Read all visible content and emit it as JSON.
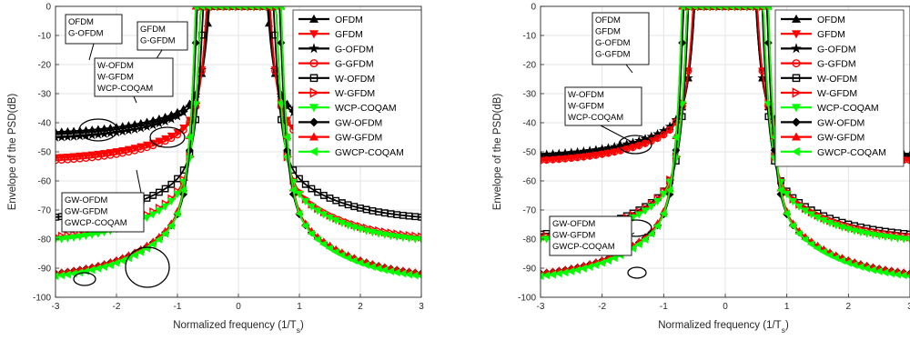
{
  "chart_data": [
    {
      "type": "line",
      "title": "",
      "xlabel": "Normalized frequency (1/T",
      "xlabel_sub": "s",
      "xlabel_tail": ")",
      "ylabel": "Envelope of the PSD(dB)",
      "xlim": [
        -3,
        3
      ],
      "ylim": [
        -100,
        0
      ],
      "xticks": [
        -3,
        -2,
        -1,
        0,
        1,
        2,
        3
      ],
      "yticks": [
        0,
        -10,
        -20,
        -30,
        -40,
        -50,
        -60,
        -70,
        -80,
        -90,
        -100
      ],
      "grid": true,
      "legend_position": "top-right",
      "series": [
        {
          "name": "OFDM",
          "color": "#000000",
          "marker": "triangle-up",
          "floor": -44,
          "edge": 0.48,
          "plateau": 0.58,
          "steep": 1.4
        },
        {
          "name": "GFDM",
          "color": "#ff0000",
          "marker": "triangle-down",
          "floor": -53,
          "edge": 0.52,
          "plateau": 0.58,
          "steep": 1.4
        },
        {
          "name": "G-OFDM",
          "color": "#000000",
          "marker": "star",
          "floor": -46,
          "edge": 0.5,
          "plateau": 0.58,
          "steep": 1.4
        },
        {
          "name": "G-GFDM",
          "color": "#ff0000",
          "marker": "circle",
          "floor": -54,
          "edge": 0.52,
          "plateau": 0.58,
          "steep": 1.4
        },
        {
          "name": "W-OFDM",
          "color": "#000000",
          "marker": "square",
          "floor": -74,
          "edge": 0.58,
          "plateau": 0.65,
          "steep": 1.6
        },
        {
          "name": "W-GFDM",
          "color": "#ff0000",
          "marker": "triangle-right",
          "floor": -81,
          "edge": 0.62,
          "plateau": 0.65,
          "steep": 1.6
        },
        {
          "name": "WCP-COQAM",
          "color": "#00ff00",
          "marker": "triangle-down",
          "floor": -82,
          "edge": 0.62,
          "plateau": 0.65,
          "steep": 1.6
        },
        {
          "name": "GW-OFDM",
          "color": "#000000",
          "marker": "diamond",
          "floor": -94,
          "edge": 0.68,
          "plateau": 0.75,
          "steep": 1.8
        },
        {
          "name": "GW-GFDM",
          "color": "#ff0000",
          "marker": "triangle-up",
          "floor": -94,
          "edge": 0.7,
          "plateau": 0.75,
          "steep": 1.8
        },
        {
          "name": "GWCP-COQAM",
          "color": "#00ff00",
          "marker": "triangle-left",
          "floor": -95,
          "edge": 0.7,
          "plateau": 0.75,
          "steep": 1.8
        }
      ],
      "annotations": [
        {
          "lines": [
            "OFDM",
            "G-OFDM"
          ]
        },
        {
          "lines": [
            "GFDM",
            "G-GFDM"
          ]
        },
        {
          "lines": [
            "W-OFDM",
            "W-GFDM",
            "WCP-COQAM"
          ]
        },
        {
          "lines": [
            "GW-OFDM",
            "GW-GFDM",
            "GWCP-COQAM"
          ]
        }
      ]
    },
    {
      "type": "line",
      "title": "",
      "xlabel": "Normalized frequency (1/T",
      "xlabel_sub": "s",
      "xlabel_tail": ")",
      "ylabel": "Envelope of the PSD(dB)",
      "xlim": [
        -3,
        3
      ],
      "ylim": [
        -100,
        0
      ],
      "xticks": [
        -3,
        -2,
        -1,
        0,
        1,
        2,
        3
      ],
      "yticks": [
        0,
        -10,
        -20,
        -30,
        -40,
        -50,
        -60,
        -70,
        -80,
        -90,
        -100
      ],
      "grid": true,
      "legend_position": "top-right",
      "series": [
        {
          "name": "OFDM",
          "color": "#000000",
          "marker": "triangle-up",
          "floor": -52,
          "edge": 0.5,
          "plateau": 0.58,
          "steep": 1.5
        },
        {
          "name": "GFDM",
          "color": "#ff0000",
          "marker": "triangle-down",
          "floor": -54,
          "edge": 0.52,
          "plateau": 0.58,
          "steep": 1.5
        },
        {
          "name": "G-OFDM",
          "color": "#000000",
          "marker": "star",
          "floor": -52,
          "edge": 0.5,
          "plateau": 0.58,
          "steep": 1.5
        },
        {
          "name": "G-GFDM",
          "color": "#ff0000",
          "marker": "circle",
          "floor": -54,
          "edge": 0.52,
          "plateau": 0.58,
          "steep": 1.5
        },
        {
          "name": "W-OFDM",
          "color": "#000000",
          "marker": "square",
          "floor": -80,
          "edge": 0.6,
          "plateau": 0.65,
          "steep": 1.7
        },
        {
          "name": "W-GFDM",
          "color": "#ff0000",
          "marker": "triangle-right",
          "floor": -81,
          "edge": 0.62,
          "plateau": 0.65,
          "steep": 1.7
        },
        {
          "name": "WCP-COQAM",
          "color": "#00ff00",
          "marker": "triangle-down",
          "floor": -82,
          "edge": 0.62,
          "plateau": 0.65,
          "steep": 1.7
        },
        {
          "name": "GW-OFDM",
          "color": "#000000",
          "marker": "diamond",
          "floor": -94,
          "edge": 0.68,
          "plateau": 0.75,
          "steep": 1.9
        },
        {
          "name": "GW-GFDM",
          "color": "#ff0000",
          "marker": "triangle-up",
          "floor": -94,
          "edge": 0.7,
          "plateau": 0.75,
          "steep": 1.9
        },
        {
          "name": "GWCP-COQAM",
          "color": "#00ff00",
          "marker": "triangle-left",
          "floor": -95,
          "edge": 0.7,
          "plateau": 0.75,
          "steep": 1.9
        }
      ],
      "annotations": [
        {
          "lines": [
            "OFDM",
            "GFDM",
            "G-OFDM",
            "G-GFDM"
          ]
        },
        {
          "lines": [
            "W-OFDM",
            "W-GFDM",
            "WCP-COQAM"
          ]
        },
        {
          "lines": [
            "GW-OFDM",
            "GW-GFDM",
            "GWCP-COQAM"
          ]
        }
      ]
    }
  ]
}
